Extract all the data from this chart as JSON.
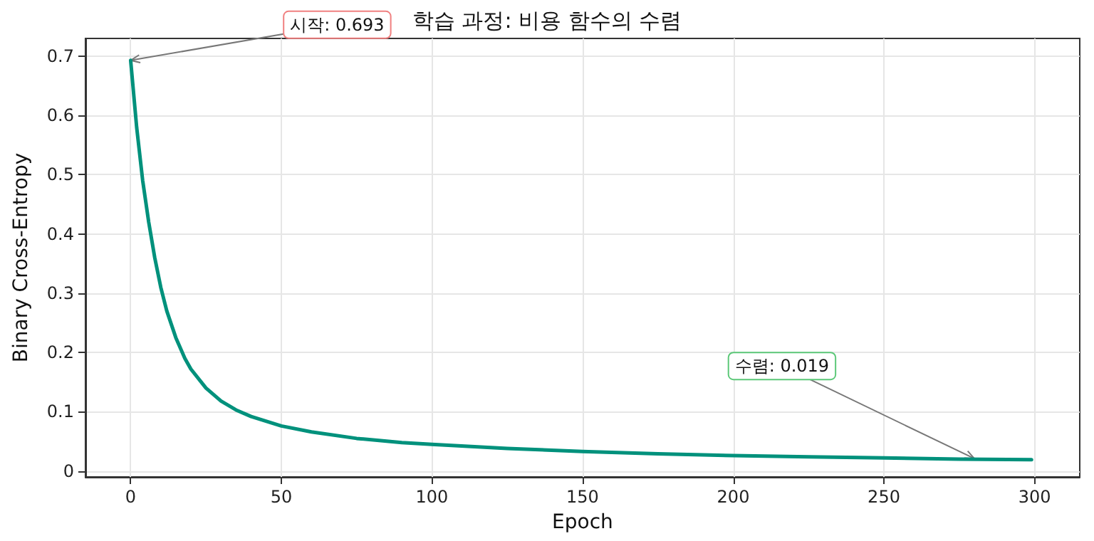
{
  "chart_data": {
    "type": "line",
    "title": "학습 과정: 비용 함수의 수렴",
    "xlabel": "Epoch",
    "ylabel": "Binary Cross-Entropy",
    "x": [
      0,
      2,
      4,
      6,
      8,
      10,
      12,
      15,
      18,
      20,
      25,
      30,
      35,
      40,
      50,
      60,
      75,
      90,
      100,
      125,
      150,
      175,
      200,
      225,
      250,
      275,
      299
    ],
    "series": [
      {
        "color": "#00917c",
        "values": [
          0.693,
          0.58,
          0.49,
          0.42,
          0.36,
          0.31,
          0.27,
          0.225,
          0.19,
          0.172,
          0.14,
          0.118,
          0.103,
          0.092,
          0.076,
          0.066,
          0.055,
          0.048,
          0.045,
          0.038,
          0.033,
          0.029,
          0.026,
          0.024,
          0.022,
          0.02,
          0.019
        ]
      }
    ],
    "xlim": [
      -15,
      315
    ],
    "xticks": [
      0,
      50,
      100,
      150,
      200,
      250,
      300
    ],
    "ylim": [
      -0.01,
      0.73
    ],
    "yticks": [
      0,
      0.1,
      0.2,
      0.3,
      0.4,
      0.5,
      0.6,
      0.7
    ],
    "grid": true,
    "marker": "none",
    "line_style": "solid",
    "annotations": [
      {
        "text": "시작: 0.693",
        "x": 0,
        "y": 0.693
      },
      {
        "text": "수렴: 0.019",
        "x": 280,
        "y": 0.021
      }
    ]
  }
}
